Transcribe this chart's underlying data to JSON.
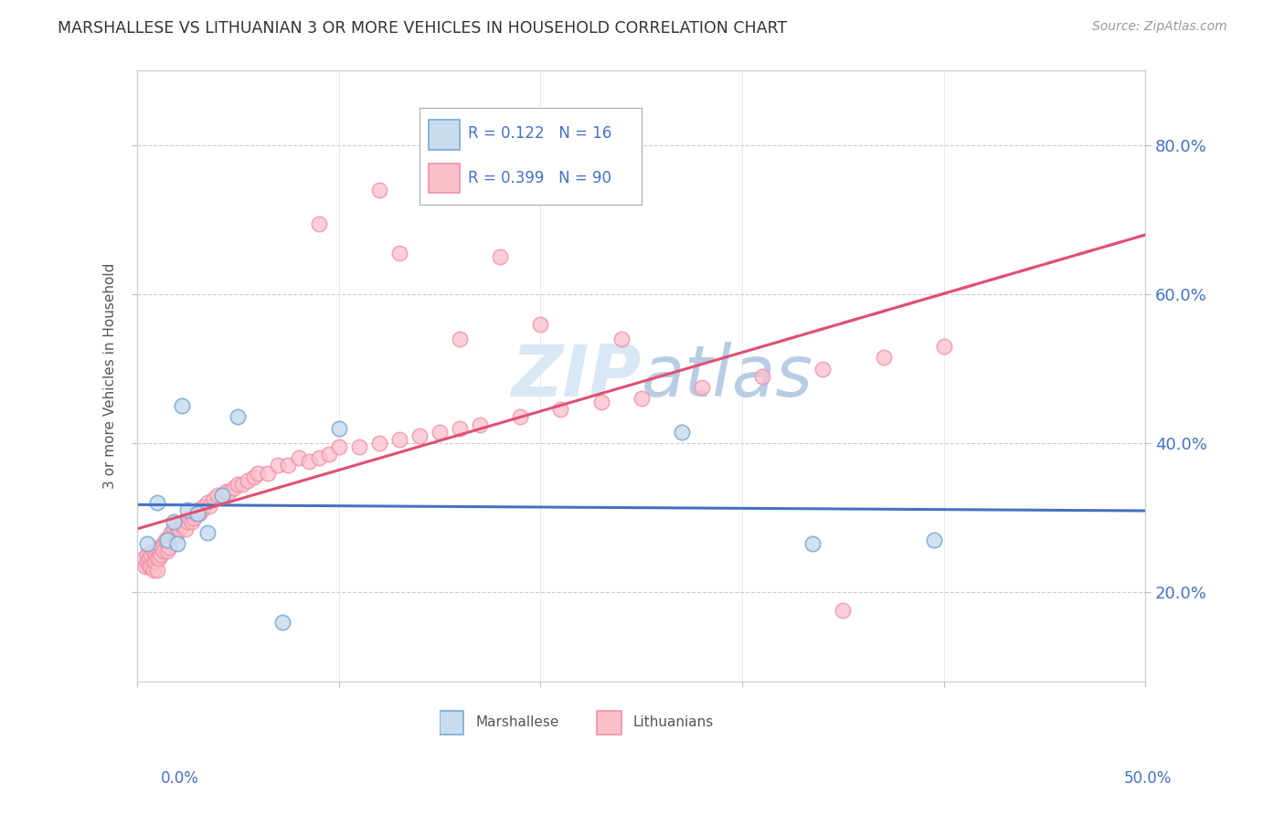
{
  "title": "MARSHALLESE VS LITHUANIAN 3 OR MORE VEHICLES IN HOUSEHOLD CORRELATION CHART",
  "source": "Source: ZipAtlas.com",
  "ylabel": "3 or more Vehicles in Household",
  "y_tick_labels": [
    "20.0%",
    "40.0%",
    "60.0%",
    "80.0%"
  ],
  "y_tick_values": [
    0.2,
    0.4,
    0.6,
    0.8
  ],
  "xmin": 0.0,
  "xmax": 0.5,
  "ymin": 0.08,
  "ymax": 0.9,
  "legend_r1": "R = 0.122",
  "legend_n1": "N = 16",
  "legend_r2": "R = 0.399",
  "legend_n2": "N = 90",
  "color_marshallese_fill": "#c8dcf0",
  "color_marshallese_edge": "#7aaad0",
  "color_lithuanian_fill": "#fcc0cc",
  "color_lithuanian_edge": "#f090a8",
  "line_color_marshallese": "#4472c4",
  "line_color_lithuanian": "#e05070",
  "watermark_color": "#d8e8f4",
  "marshallese_x": [
    0.005,
    0.01,
    0.015,
    0.018,
    0.02,
    0.022,
    0.025,
    0.03,
    0.035,
    0.042,
    0.05,
    0.072,
    0.1,
    0.27,
    0.335,
    0.395
  ],
  "marshallese_y": [
    0.265,
    0.32,
    0.27,
    0.295,
    0.265,
    0.45,
    0.31,
    0.305,
    0.28,
    0.33,
    0.435,
    0.16,
    0.42,
    0.415,
    0.265,
    0.27
  ],
  "lithuanian_x": [
    0.003,
    0.004,
    0.005,
    0.005,
    0.006,
    0.006,
    0.007,
    0.007,
    0.008,
    0.008,
    0.008,
    0.009,
    0.009,
    0.01,
    0.01,
    0.01,
    0.011,
    0.011,
    0.012,
    0.012,
    0.013,
    0.013,
    0.014,
    0.015,
    0.015,
    0.016,
    0.016,
    0.017,
    0.018,
    0.019,
    0.02,
    0.02,
    0.021,
    0.022,
    0.023,
    0.024,
    0.025,
    0.026,
    0.027,
    0.028,
    0.029,
    0.03,
    0.031,
    0.032,
    0.033,
    0.035,
    0.036,
    0.038,
    0.04,
    0.042,
    0.044,
    0.046,
    0.048,
    0.05,
    0.052,
    0.055,
    0.058,
    0.06,
    0.065,
    0.07,
    0.075,
    0.08,
    0.085,
    0.09,
    0.095,
    0.1,
    0.11,
    0.12,
    0.13,
    0.14,
    0.15,
    0.16,
    0.17,
    0.19,
    0.21,
    0.23,
    0.25,
    0.28,
    0.31,
    0.34,
    0.37,
    0.4,
    0.35,
    0.16,
    0.2,
    0.24,
    0.09,
    0.12,
    0.18,
    0.13
  ],
  "lithuanian_y": [
    0.245,
    0.235,
    0.25,
    0.24,
    0.245,
    0.235,
    0.25,
    0.235,
    0.255,
    0.24,
    0.23,
    0.25,
    0.24,
    0.255,
    0.245,
    0.23,
    0.26,
    0.245,
    0.26,
    0.25,
    0.265,
    0.255,
    0.27,
    0.27,
    0.255,
    0.275,
    0.26,
    0.28,
    0.285,
    0.275,
    0.28,
    0.29,
    0.285,
    0.29,
    0.29,
    0.285,
    0.295,
    0.3,
    0.295,
    0.3,
    0.305,
    0.31,
    0.305,
    0.31,
    0.315,
    0.32,
    0.315,
    0.325,
    0.33,
    0.33,
    0.335,
    0.335,
    0.34,
    0.345,
    0.345,
    0.35,
    0.355,
    0.36,
    0.36,
    0.37,
    0.37,
    0.38,
    0.375,
    0.38,
    0.385,
    0.395,
    0.395,
    0.4,
    0.405,
    0.41,
    0.415,
    0.42,
    0.425,
    0.435,
    0.445,
    0.455,
    0.46,
    0.475,
    0.49,
    0.5,
    0.515,
    0.53,
    0.175,
    0.54,
    0.56,
    0.54,
    0.695,
    0.74,
    0.65,
    0.655
  ]
}
